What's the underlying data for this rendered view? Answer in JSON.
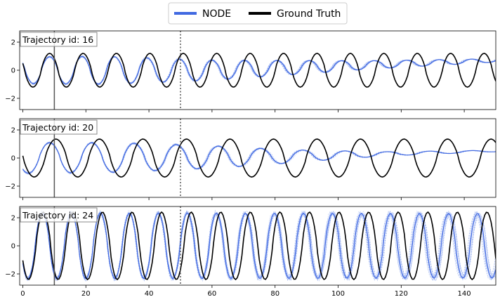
{
  "legend": {
    "placement": "top-center",
    "entries": [
      {
        "label": "NODE",
        "color": "#4169e1"
      },
      {
        "label": "Ground Truth",
        "color": "#000000"
      }
    ]
  },
  "colors": {
    "node": "#4169e1",
    "ensemble": "#8fa8ee",
    "truth": "#000000",
    "marker_line": "#555555"
  },
  "chart_data": {
    "type": "line",
    "shared_x_axis": {
      "range": [
        -1,
        150
      ],
      "ticks": [
        0,
        20,
        40,
        60,
        80,
        100,
        120,
        140
      ],
      "tick_labels_shown_on": "bottom panel only"
    },
    "y_axis": {
      "range": [
        -2.8,
        2.8
      ],
      "ticks": [
        -2,
        0,
        2
      ]
    },
    "vertical_markers": [
      {
        "x": 10,
        "style": "solid"
      },
      {
        "x": 50,
        "style": "dotted"
      }
    ],
    "panels": [
      {
        "label": "Trajectory id: 16",
        "ground_truth": {
          "period": 10.6,
          "amplitude": 1.2,
          "phase_at_peak_x": 8.5
        },
        "node": {
          "period": 10.3,
          "peak_x": 8.5,
          "amplitude_profile": [
            [
              0,
              0.95
            ],
            [
              25,
              1.0
            ],
            [
              50,
              0.8
            ],
            [
              80,
              0.55
            ],
            [
              110,
              0.3
            ],
            [
              150,
              0.12
            ]
          ],
          "offset_profile": [
            [
              0,
              0.0
            ],
            [
              60,
              0.0
            ],
            [
              100,
              0.3
            ],
            [
              150,
              0.7
            ]
          ]
        }
      },
      {
        "label": "Trajectory id: 20",
        "ground_truth": {
          "period": 13.8,
          "amplitude": 1.35,
          "phase_at_peak_x": 10.5
        },
        "node": {
          "period": 13.4,
          "peak_x": 8.5,
          "amplitude_profile": [
            [
              0,
              1.1
            ],
            [
              30,
              1.05
            ],
            [
              60,
              0.8
            ],
            [
              90,
              0.4
            ],
            [
              115,
              0.15
            ],
            [
              150,
              0.05
            ]
          ],
          "offset_profile": [
            [
              0,
              0.0
            ],
            [
              80,
              0.1
            ],
            [
              150,
              0.5
            ]
          ]
        }
      },
      {
        "label": "Trajectory id: 24",
        "ground_truth": {
          "period": 9.38,
          "amplitude": 2.4,
          "phase_at_peak_x": 6.5
        },
        "node": {
          "period": 9.2,
          "peak_x": 6.2,
          "amplitude_profile": [
            [
              0,
              2.35
            ],
            [
              150,
              2.3
            ]
          ],
          "offset_profile": [
            [
              0,
              0.0
            ],
            [
              150,
              0.0
            ]
          ]
        }
      }
    ],
    "series": [
      {
        "name": "NODE"
      },
      {
        "name": "Ground Truth"
      }
    ]
  }
}
